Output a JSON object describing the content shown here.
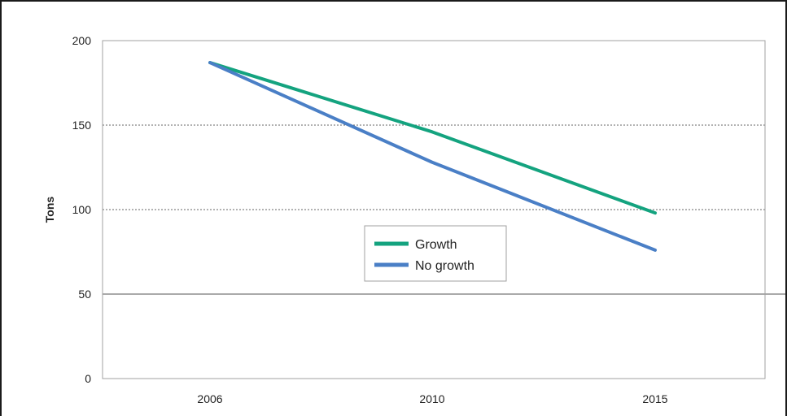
{
  "chart_data": {
    "type": "line",
    "title": "",
    "xlabel": "",
    "ylabel": "Tons",
    "x": [
      "2006",
      "2010",
      "2015"
    ],
    "ylim": [
      0,
      200
    ],
    "yticks": [
      0,
      50,
      100,
      150,
      200
    ],
    "grid": "horizontal-dotted",
    "legend_position": "center",
    "series": [
      {
        "name": "Growth",
        "color": "#14a37f",
        "values": [
          187,
          146,
          98
        ]
      },
      {
        "name": "No growth",
        "color": "#4a7fc6",
        "values": [
          187,
          128,
          76
        ]
      }
    ]
  }
}
